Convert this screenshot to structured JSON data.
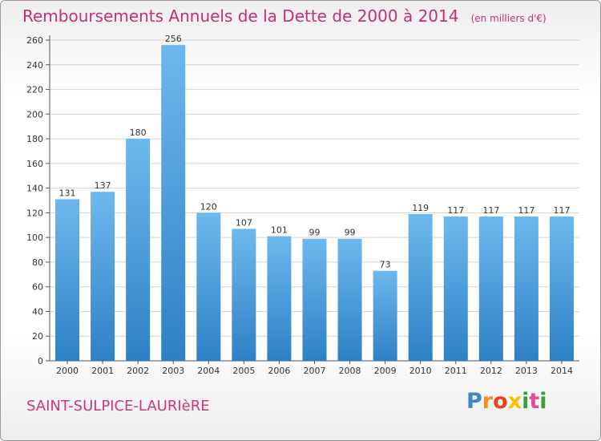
{
  "chart_data": {
    "type": "bar",
    "title": "Remboursements Annuels de la Dette de 2000 à 2014",
    "subtitle": "(en milliers d'€)",
    "categories": [
      "2000",
      "2001",
      "2002",
      "2003",
      "2004",
      "2005",
      "2006",
      "2007",
      "2008",
      "2009",
      "2010",
      "2011",
      "2012",
      "2013",
      "2014"
    ],
    "values": [
      131,
      137,
      180,
      256,
      120,
      107,
      101,
      99,
      99,
      73,
      119,
      117,
      117,
      117,
      117
    ],
    "ylim": [
      0,
      260
    ],
    "yticks": [
      0,
      20,
      40,
      60,
      80,
      100,
      120,
      140,
      160,
      180,
      200,
      220,
      240,
      260
    ],
    "grid": true,
    "colors": {
      "bar_light": "#6db8ee",
      "bar_dark": "#2e80c6",
      "grid": "#d4d4d4",
      "axis": "#555555",
      "title": "#c0307a"
    }
  },
  "footer": {
    "commune": "SAINT-SULPICE-LAURIèRE",
    "logo_letters": [
      "P",
      "r",
      "o",
      "x",
      "i",
      "t",
      "i"
    ],
    "logo_colors": [
      "#3f86c8",
      "#f2921c",
      "#e8441a",
      "#f5c200",
      "#3a9c3a",
      "#e84a8a",
      "#3a9c3a"
    ]
  }
}
